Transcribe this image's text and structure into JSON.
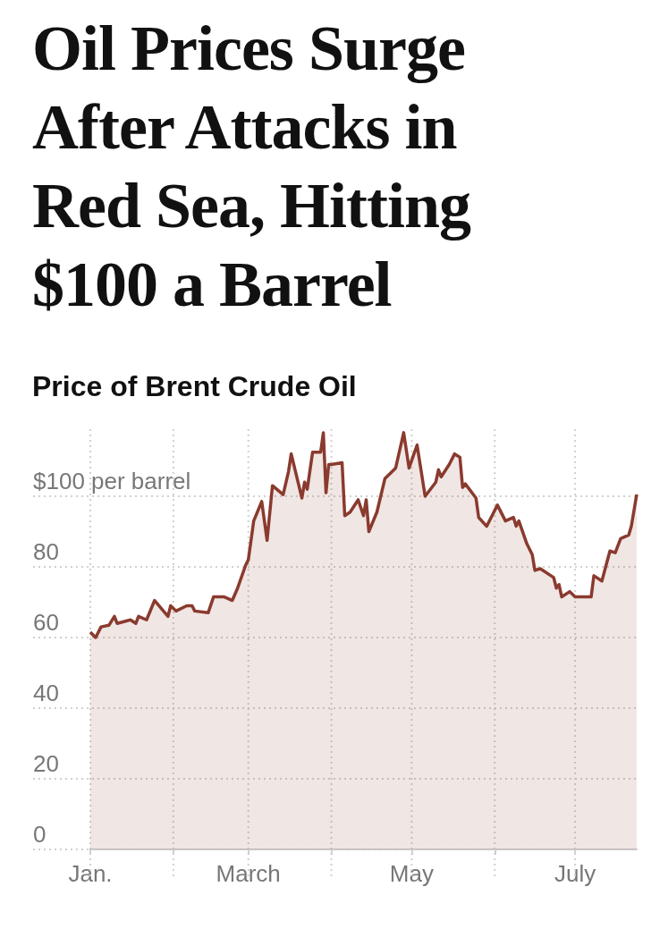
{
  "chart_data": {
    "type": "area",
    "title": "Oil Prices Surge After Attacks in Red Sea, Hitting $100 a Barrel",
    "subtitle": "Price of Brent Crude Oil",
    "x": [
      "--01-01",
      "--01-03",
      "--01-05",
      "--01-08",
      "--01-10",
      "--01-11",
      "--01-16",
      "--01-18",
      "--01-19",
      "--01-22",
      "--01-25",
      "--01-30",
      "--01-31",
      "--02-02",
      "--02-06",
      "--02-08",
      "--02-09",
      "--02-14",
      "--02-16",
      "--02-20",
      "--02-23",
      "--02-25",
      "--02-28",
      "--03-01",
      "--03-03",
      "--03-06",
      "--03-08",
      "--03-10",
      "--03-14",
      "--03-16",
      "--03-17",
      "--03-21",
      "--03-22",
      "--03-23",
      "--03-25",
      "--03-28",
      "--03-29",
      "--03-30",
      "--03-31",
      "--04-01",
      "--04-05",
      "--04-06",
      "--04-08",
      "--04-11",
      "--04-13",
      "--04-14",
      "--04-15",
      "--04-18",
      "--04-21",
      "--04-25",
      "--04-28",
      "--04-30",
      "--05-03",
      "--05-06",
      "--05-10",
      "--05-11",
      "--05-12",
      "--05-15",
      "--05-17",
      "--05-19",
      "--05-20",
      "--05-21",
      "--05-25",
      "--05-26",
      "--05-29",
      "--06-02",
      "--06-05",
      "--06-08",
      "--06-09",
      "--06-10",
      "--06-13",
      "--06-15",
      "--06-16",
      "--06-18",
      "--06-23",
      "--06-24",
      "--06-25",
      "--06-26",
      "--06-29",
      "--07-01",
      "--07-07",
      "--07-08",
      "--07-11",
      "--07-14",
      "--07-16",
      "--07-18",
      "--07-21",
      "--07-22",
      "--07-24"
    ],
    "values": [
      61.5,
      60,
      63,
      63.5,
      66,
      64,
      65,
      64,
      66,
      65,
      70.5,
      66,
      69,
      67.5,
      69,
      69,
      67.5,
      67,
      71.5,
      71.5,
      70.5,
      74,
      80.5,
      82,
      93,
      98.5,
      87.5,
      103,
      100.5,
      107,
      112,
      99.5,
      104,
      102,
      112.5,
      112.5,
      118,
      101,
      109,
      109,
      109.5,
      94.5,
      95.5,
      99,
      94.5,
      99,
      90,
      95.5,
      105,
      108,
      118,
      108,
      114.5,
      100,
      104,
      107.5,
      105.5,
      109,
      112,
      111,
      102.5,
      103.5,
      99.5,
      94,
      91.5,
      97.5,
      93,
      94,
      91.5,
      93,
      86.5,
      83.5,
      79,
      79.5,
      77,
      74,
      75,
      71.5,
      73,
      71.5,
      71.5,
      77.5,
      76,
      84.5,
      84,
      88,
      89,
      91.5,
      100.5
    ],
    "color": "#8a3a2e",
    "xlim": [
      "--01-01",
      "--07-24"
    ],
    "xticks": [
      {
        "value": "--01-01",
        "label": "Jan."
      },
      {
        "value": "--02-01",
        "label": null
      },
      {
        "value": "--03-01",
        "label": "March"
      },
      {
        "value": "--04-01",
        "label": null
      },
      {
        "value": "--05-01",
        "label": "May"
      },
      {
        "value": "--06-01",
        "label": null
      },
      {
        "value": "--07-01",
        "label": "July"
      }
    ],
    "ylim": [
      0,
      120
    ],
    "yticks": [
      0,
      20,
      40,
      60,
      80,
      {
        "value": 100,
        "label": "$100 per barrel"
      }
    ],
    "grid": true
  }
}
